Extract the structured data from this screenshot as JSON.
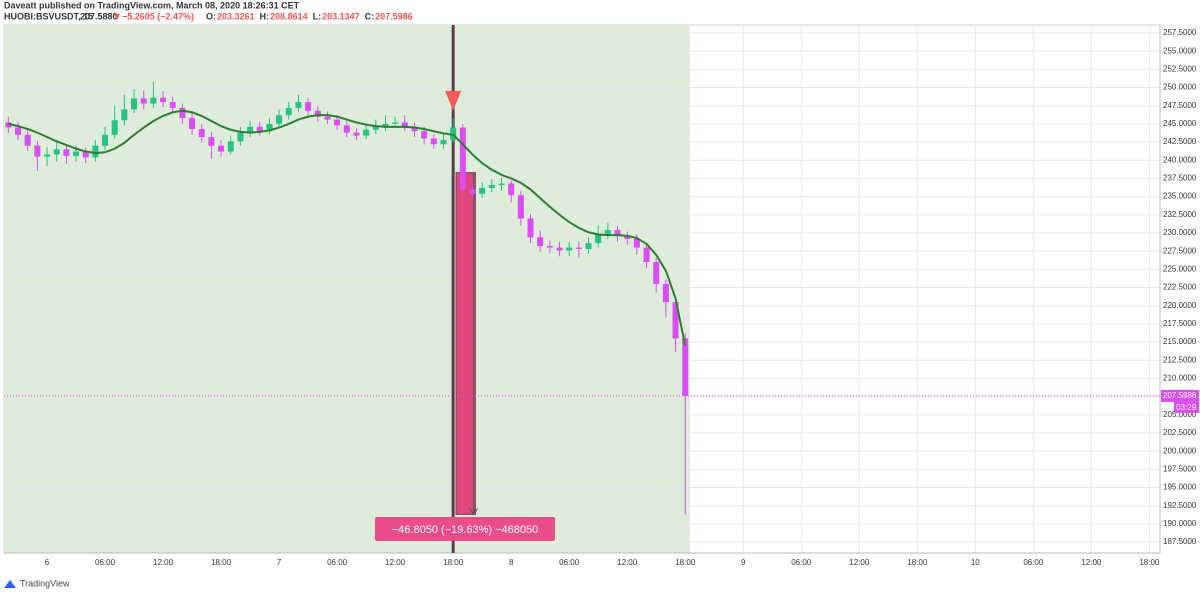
{
  "chart_data": {
    "type": "candlestick",
    "header": {
      "publisher": "Daveatt published on TradingView.com, March 08, 2020 18:26:31 CET",
      "symbol": "HUOBI:BSVUSDT, 15",
      "price": "207.5880",
      "change": "−5.2605 (−2.47%)",
      "ohlc": [
        {
          "label": "O:",
          "value": "203.3261"
        },
        {
          "label": "H:",
          "value": "208.8614"
        },
        {
          "label": "L:",
          "value": "203.1347"
        },
        {
          "label": "C:",
          "value": "207.5986"
        }
      ]
    },
    "up_color": "#26c281",
    "down_color": "#d94df2",
    "ma_color": "#2e7d32",
    "x": [
      -4,
      -3,
      -2,
      -1,
      0,
      1,
      2,
      3,
      4,
      5,
      6,
      7,
      8,
      9,
      10,
      11,
      12,
      13,
      14,
      15,
      16,
      17,
      18,
      19,
      20,
      21,
      22,
      23,
      24,
      25,
      26,
      27,
      28,
      29,
      30,
      31,
      32,
      33,
      34,
      35,
      36,
      37,
      38,
      39,
      40,
      41,
      42,
      43,
      44,
      45,
      46,
      47,
      48,
      49,
      50,
      51,
      52,
      53,
      54,
      55,
      56,
      57,
      58,
      59,
      60,
      61,
      62,
      63,
      64,
      65,
      66
    ],
    "candles": [
      [
        245.2,
        246,
        243.8,
        244.5
      ],
      [
        244.5,
        245.2,
        242.8,
        243.5
      ],
      [
        243.5,
        244.2,
        241.3,
        242
      ],
      [
        242,
        242.7,
        238.5,
        240.5
      ],
      [
        240.5,
        241.8,
        239.2,
        240.8
      ],
      [
        240.8,
        242.6,
        239.8,
        241.5
      ],
      [
        241.5,
        242.2,
        239.5,
        240.6
      ],
      [
        240.6,
        242,
        239.8,
        241.2
      ],
      [
        241.2,
        241.8,
        239.6,
        240.4
      ],
      [
        240.4,
        242.8,
        239.8,
        242
      ],
      [
        242,
        244.6,
        241.4,
        243.5
      ],
      [
        243.5,
        247.5,
        243,
        245.5
      ],
      [
        245.5,
        249,
        244.8,
        247
      ],
      [
        247,
        249.8,
        246.5,
        248.5
      ],
      [
        248.5,
        249.6,
        247,
        247.8
      ],
      [
        247.8,
        250.8,
        247.2,
        248.6
      ],
      [
        248.6,
        249.5,
        247.3,
        248
      ],
      [
        248,
        248.8,
        246.5,
        247.2
      ],
      [
        247.2,
        247.8,
        245,
        245.8
      ],
      [
        245.8,
        246.5,
        243.5,
        244.3
      ],
      [
        244.3,
        245,
        242.4,
        243.2
      ],
      [
        243.2,
        243.9,
        240.2,
        242
      ],
      [
        242,
        242.8,
        240.5,
        241.2
      ],
      [
        241.2,
        243.3,
        240.8,
        242.6
      ],
      [
        242.6,
        244.6,
        242,
        243.8
      ],
      [
        243.8,
        245.4,
        243.2,
        244.6
      ],
      [
        244.6,
        245.3,
        243.4,
        244
      ],
      [
        244,
        245.8,
        243.5,
        245
      ],
      [
        245,
        247,
        244.6,
        246.2
      ],
      [
        246.2,
        248,
        245.6,
        247.2
      ],
      [
        247.2,
        249,
        246.6,
        248
      ],
      [
        248,
        248.6,
        246.2,
        246.8
      ],
      [
        246.8,
        247.4,
        245.3,
        246
      ],
      [
        246,
        246.7,
        245,
        245.6
      ],
      [
        245.6,
        246.2,
        244.2,
        244.8
      ],
      [
        244.8,
        245.4,
        243.2,
        243.8
      ],
      [
        243.8,
        244.4,
        242.8,
        243.4
      ],
      [
        243.4,
        244.9,
        242.9,
        244.2
      ],
      [
        244.2,
        245.6,
        243.6,
        244.6
      ],
      [
        244.6,
        246.2,
        244,
        245
      ],
      [
        245,
        246,
        244.4,
        245.2
      ],
      [
        245.2,
        246.2,
        244,
        244.6
      ],
      [
        244.6,
        245.2,
        243.2,
        244
      ],
      [
        244,
        244.6,
        242.2,
        243
      ],
      [
        243,
        243.6,
        241.6,
        242.2
      ],
      [
        242.2,
        243.8,
        241.6,
        242.8
      ],
      [
        242.8,
        245.8,
        242.4,
        244.5
      ],
      [
        244.5,
        245,
        235.5,
        236
      ],
      [
        236,
        236.8,
        234.6,
        235.4
      ],
      [
        235.4,
        237,
        234.8,
        236.2
      ],
      [
        236.2,
        237.4,
        235.6,
        236.6
      ],
      [
        236.6,
        237.6,
        235.8,
        236.8
      ],
      [
        236.8,
        237.2,
        234.2,
        235.2
      ],
      [
        235.2,
        235.8,
        231,
        232
      ],
      [
        232,
        232.6,
        228.6,
        229.4
      ],
      [
        229.4,
        230.4,
        227.4,
        228.2
      ],
      [
        228.2,
        229,
        227.2,
        228
      ],
      [
        228,
        228.8,
        226.8,
        227.6
      ],
      [
        227.6,
        228.8,
        226.8,
        228
      ],
      [
        228,
        228.8,
        226.6,
        227.8
      ],
      [
        227.8,
        229.4,
        227.2,
        228.6
      ],
      [
        228.6,
        231,
        228,
        229.8
      ],
      [
        229.8,
        231.4,
        229.2,
        230.4
      ],
      [
        230.4,
        231,
        228.8,
        229.6
      ],
      [
        229.6,
        230.2,
        228.4,
        229.2
      ],
      [
        229.2,
        229.8,
        227,
        228
      ],
      [
        228,
        228.6,
        225.2,
        226
      ],
      [
        226,
        226.6,
        221.8,
        223
      ],
      [
        223,
        223.6,
        218.4,
        220.5
      ],
      [
        220.5,
        221,
        213.6,
        215.5
      ],
      [
        215.5,
        216.2,
        191.3,
        207.6
      ]
    ],
    "ma": [
      245,
      244.7,
      244.3,
      243.8,
      243.2,
      242.6,
      242.1,
      241.6,
      241.2,
      241,
      241.1,
      241.6,
      242.4,
      243.5,
      244.5,
      245.4,
      246.1,
      246.6,
      246.8,
      246.6,
      246.1,
      245.4,
      244.7,
      244.2,
      243.9,
      243.8,
      243.9,
      244.1,
      244.5,
      245,
      245.6,
      246,
      246.2,
      246.2,
      246,
      245.6,
      245.2,
      244.9,
      244.7,
      244.6,
      244.6,
      244.6,
      244.5,
      244.3,
      244,
      243.7,
      243.5,
      242.2,
      240.8,
      239.6,
      238.7,
      238,
      237.5,
      236.9,
      236,
      234.8,
      233.6,
      232.5,
      231.5,
      230.7,
      230.1,
      229.8,
      229.7,
      229.7,
      229.6,
      229.3,
      228.5,
      227,
      224.8,
      221,
      214.5
    ],
    "xlim": [
      -4.45,
      115.1
    ],
    "ylim": [
      186.0,
      258.6
    ],
    "xticks": [
      {
        "value": 0,
        "label": "6"
      },
      {
        "value": 6,
        "label": "06:00"
      },
      {
        "value": 12,
        "label": "12:00"
      },
      {
        "value": 18,
        "label": "18:00"
      },
      {
        "value": 24,
        "label": "7"
      },
      {
        "value": 30,
        "label": "06:00"
      },
      {
        "value": 36,
        "label": "12:00"
      },
      {
        "value": 42,
        "label": "18:00"
      },
      {
        "value": 48,
        "label": "8"
      },
      {
        "value": 54,
        "label": "06:00"
      },
      {
        "value": 60,
        "label": "12:00"
      },
      {
        "value": 66,
        "label": "18:00"
      },
      {
        "value": 72,
        "label": "9"
      },
      {
        "value": 78,
        "label": "06:00"
      },
      {
        "value": 84,
        "label": "12:00"
      },
      {
        "value": 90,
        "label": "18:00"
      },
      {
        "value": 96,
        "label": "10"
      },
      {
        "value": 102,
        "label": "06:00"
      },
      {
        "value": 108,
        "label": "12:00"
      },
      {
        "value": 114,
        "label": "18:00"
      }
    ],
    "yticks": [
      {
        "value": 187.5,
        "label": "187.5000"
      },
      {
        "value": 190,
        "label": "190.0000"
      },
      {
        "value": 192.5,
        "label": "192.5000"
      },
      {
        "value": 195,
        "label": "195.0000"
      },
      {
        "value": 197.5,
        "label": "197.5000"
      },
      {
        "value": 200,
        "label": "200.0000"
      },
      {
        "value": 202.5,
        "label": "202.5000"
      },
      {
        "value": 205,
        "label": "205.0000"
      },
      {
        "value": 207.5,
        "label": "207.5000"
      },
      {
        "value": 210,
        "label": "210.0000"
      },
      {
        "value": 212.5,
        "label": "212.5000"
      },
      {
        "value": 215,
        "label": "215.0000"
      },
      {
        "value": 217.5,
        "label": "217.5000"
      },
      {
        "value": 220,
        "label": "220.0000"
      },
      {
        "value": 222.5,
        "label": "222.5000"
      },
      {
        "value": 225,
        "label": "225.0000"
      },
      {
        "value": 227.5,
        "label": "227.5000"
      },
      {
        "value": 230,
        "label": "230.0000"
      },
      {
        "value": 232.5,
        "label": "232.5000"
      },
      {
        "value": 235,
        "label": "235.0000"
      },
      {
        "value": 237.5,
        "label": "237.5000"
      },
      {
        "value": 240,
        "label": "240.0000"
      },
      {
        "value": 242.5,
        "label": "242.5000"
      },
      {
        "value": 245,
        "label": "245.0000"
      },
      {
        "value": 247.5,
        "label": "247.5000"
      },
      {
        "value": 250,
        "label": "250.0000"
      },
      {
        "value": 252.5,
        "label": "252.5000"
      },
      {
        "value": 255,
        "label": "255.0000"
      },
      {
        "value": 257.5,
        "label": "257.5000"
      }
    ],
    "grid": true,
    "shaded_range": [
      -4.45,
      66.5
    ],
    "vertical_line": 42,
    "signal": {
      "x": 42,
      "price": 246.8
    },
    "last_price": 207.5986,
    "countdown": "03:29",
    "measure": {
      "x": [
        42.3,
        44.3
      ],
      "top": 238.3,
      "bottom": 191.3,
      "label": "−46.8050 (−19.63%) −468050"
    },
    "footer": "TradingView"
  }
}
